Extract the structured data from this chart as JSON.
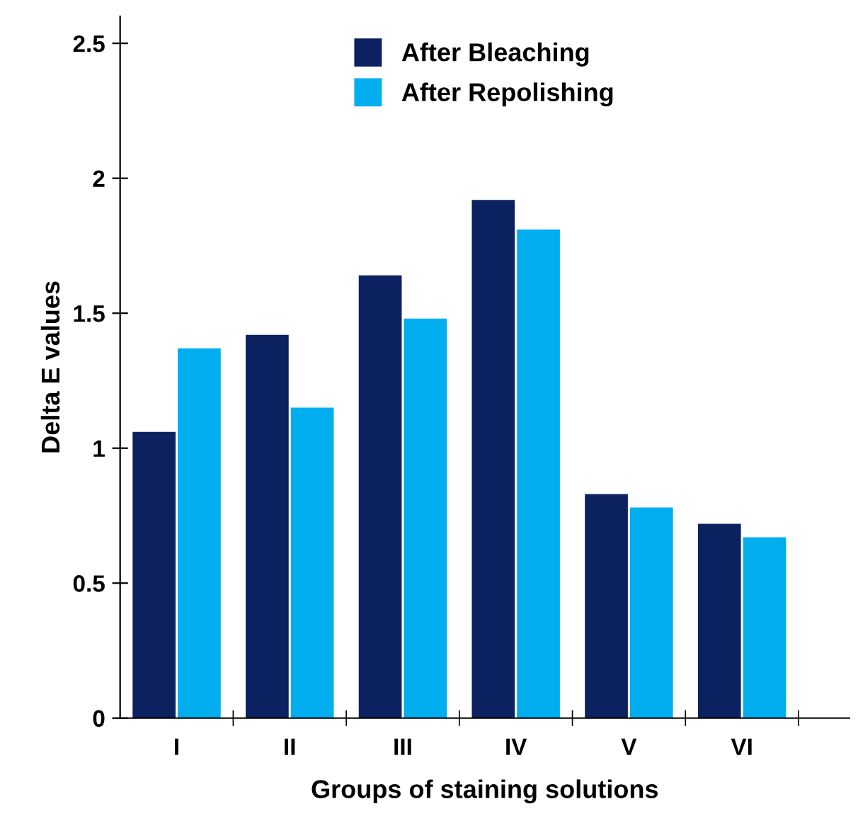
{
  "chart_data": {
    "type": "bar",
    "xlabel": "Groups of staining solutions",
    "ylabel": "Delta E values",
    "categories": [
      "I",
      "II",
      "III",
      "IV",
      "V",
      "VI"
    ],
    "series": [
      {
        "name": "After Bleaching",
        "color": "#0b2160",
        "values": [
          1.06,
          1.42,
          1.64,
          1.92,
          0.83,
          0.72
        ]
      },
      {
        "name": "After Repolishing",
        "color": "#00aeef",
        "values": [
          1.37,
          1.15,
          1.48,
          1.81,
          0.78,
          0.67
        ]
      }
    ],
    "ylim": [
      0,
      2.6
    ],
    "yticks": [
      0,
      0.5,
      1,
      1.5,
      2,
      2.5
    ],
    "grid": false,
    "legend": "top"
  }
}
